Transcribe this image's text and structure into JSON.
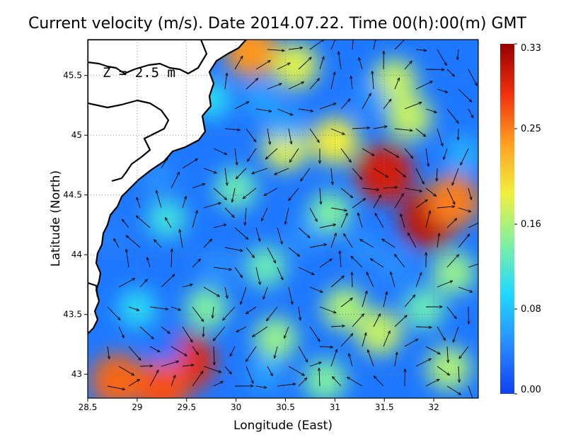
{
  "chart_data": {
    "type": "heatmap",
    "title": "Current velocity (m/s). Date 2014.07.22. Time 00(h):00(m) GMT",
    "xlabel": "Longitude (East)",
    "ylabel": "Latitude (North)",
    "annotation": "Z = 2.5 m",
    "xlim": [
      28.5,
      32.45
    ],
    "ylim": [
      42.8,
      45.8
    ],
    "x_ticks": [
      28.5,
      29,
      29.5,
      30,
      30.5,
      31,
      31.5,
      32
    ],
    "x_tick_labels": [
      "28.5",
      "29",
      "29.5",
      "30",
      "30.5",
      "31",
      "31.5",
      "32"
    ],
    "y_ticks": [
      43,
      43.5,
      44,
      44.5,
      45,
      45.5
    ],
    "y_tick_labels": [
      "43",
      "43.5",
      "44",
      "44.5",
      "45",
      "45.5"
    ],
    "grid": true,
    "colorbar": {
      "min": 0.0,
      "max": 0.33,
      "ticks": [
        0.0,
        0.08,
        0.16,
        0.25,
        0.33
      ],
      "tick_labels": [
        "0.00",
        "0.08",
        "0.16",
        "0.25",
        "0.33"
      ],
      "colormap": [
        "#1040f0",
        "#2a8cff",
        "#20d8ff",
        "#80f0a0",
        "#f0f040",
        "#ffa020",
        "#f03010",
        "#980000"
      ]
    },
    "speed_features": [
      {
        "lon": 31.5,
        "lat": 44.68,
        "speed": 0.3
      },
      {
        "lon": 31.95,
        "lat": 44.3,
        "speed": 0.31
      },
      {
        "lon": 32.2,
        "lat": 44.45,
        "speed": 0.25
      },
      {
        "lon": 29.5,
        "lat": 43.1,
        "speed": 0.29
      },
      {
        "lon": 29.25,
        "lat": 42.9,
        "speed": 0.27
      },
      {
        "lon": 28.8,
        "lat": 42.95,
        "speed": 0.26
      },
      {
        "lon": 30.15,
        "lat": 45.7,
        "speed": 0.24
      },
      {
        "lon": 30.6,
        "lat": 45.58,
        "speed": 0.18
      },
      {
        "lon": 31.6,
        "lat": 45.45,
        "speed": 0.17
      },
      {
        "lon": 31.0,
        "lat": 44.95,
        "speed": 0.19
      },
      {
        "lon": 30.5,
        "lat": 44.9,
        "speed": 0.18
      },
      {
        "lon": 31.75,
        "lat": 45.15,
        "speed": 0.17
      },
      {
        "lon": 30.95,
        "lat": 44.35,
        "speed": 0.14
      },
      {
        "lon": 30.0,
        "lat": 44.55,
        "speed": 0.13
      },
      {
        "lon": 29.3,
        "lat": 44.3,
        "speed": 0.11
      },
      {
        "lon": 30.3,
        "lat": 43.9,
        "speed": 0.13
      },
      {
        "lon": 31.1,
        "lat": 43.55,
        "speed": 0.16
      },
      {
        "lon": 31.45,
        "lat": 43.35,
        "speed": 0.17
      },
      {
        "lon": 30.4,
        "lat": 43.3,
        "speed": 0.15
      },
      {
        "lon": 29.7,
        "lat": 43.55,
        "speed": 0.14
      },
      {
        "lon": 32.15,
        "lat": 43.05,
        "speed": 0.16
      },
      {
        "lon": 32.2,
        "lat": 43.85,
        "speed": 0.15
      },
      {
        "lon": 31.9,
        "lat": 43.55,
        "speed": 0.13
      },
      {
        "lon": 30.9,
        "lat": 42.95,
        "speed": 0.14
      },
      {
        "lon": 29.0,
        "lat": 43.55,
        "speed": 0.1
      },
      {
        "lon": 28.75,
        "lat": 44.15,
        "speed": 0.04
      },
      {
        "lon": 29.2,
        "lat": 44.65,
        "speed": 0.05
      },
      {
        "lon": 29.75,
        "lat": 45.3,
        "speed": 0.1
      },
      {
        "lon": 30.25,
        "lat": 45.3,
        "speed": 0.06
      },
      {
        "lon": 30.5,
        "lat": 45.1,
        "speed": 0.06
      },
      {
        "lon": 31.35,
        "lat": 45.3,
        "speed": 0.05
      },
      {
        "lon": 30.7,
        "lat": 44.15,
        "speed": 0.05
      },
      {
        "lon": 31.3,
        "lat": 44.05,
        "speed": 0.05
      },
      {
        "lon": 29.8,
        "lat": 43.9,
        "speed": 0.05
      },
      {
        "lon": 30.3,
        "lat": 43.0,
        "speed": 0.06
      },
      {
        "lon": 31.6,
        "lat": 43.9,
        "speed": 0.05
      },
      {
        "lon": 32.3,
        "lat": 44.85,
        "speed": 0.07
      },
      {
        "lon": 29.3,
        "lat": 43.2,
        "speed": 0.03
      }
    ]
  }
}
